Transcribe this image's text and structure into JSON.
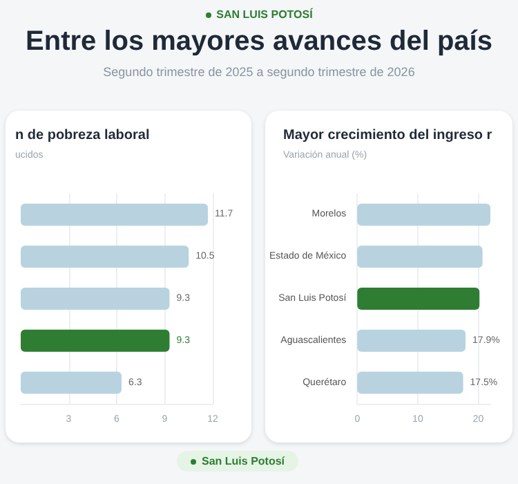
{
  "chart_data": [
    {
      "type": "other",
      "title": "Entre los mayores avances del país",
      "subtitle": "Segundo trimestre de 2025 a segundo trimestre de 2026",
      "annotations": [
        "SAN LUIS POTOSÍ",
        "San Luis Potosí"
      ]
    },
    {
      "type": "bar",
      "orientation": "horizontal",
      "title": "n de pobreza laboral",
      "subtitle": "ucidos",
      "categories": [
        null,
        null,
        null,
        null,
        null
      ],
      "values": [
        11.7,
        10.5,
        9.3,
        9.3,
        6.3
      ],
      "colors": [
        "#b8d2e0",
        "#b8d2e0",
        "#b8d2e0",
        "#2e7d32",
        "#b8d2e0"
      ],
      "data_labels": true,
      "xlim": [
        0,
        12
      ],
      "xticks": [
        3,
        6,
        9,
        12
      ],
      "grid": "x"
    },
    {
      "type": "bar",
      "orientation": "horizontal",
      "title": "Mayor crecimiento del ingreso r",
      "subtitle": "Variación anual (%)",
      "categories": [
        "Morelos",
        "Estado de México",
        "San Luis Potosí",
        "Aguascalientes",
        "Querétaro"
      ],
      "values": [
        22,
        20.7,
        20.2,
        17.9,
        17.5
      ],
      "colors": [
        "#b8d2e0",
        "#b8d2e0",
        "#2e7d32",
        "#b8d2e0",
        "#b8d2e0"
      ],
      "value_labels": [
        null,
        null,
        null,
        "17.9%",
        "17.5%"
      ],
      "xlim": [
        0,
        22
      ],
      "xticks": [
        0,
        10,
        20
      ],
      "grid": "x"
    }
  ]
}
